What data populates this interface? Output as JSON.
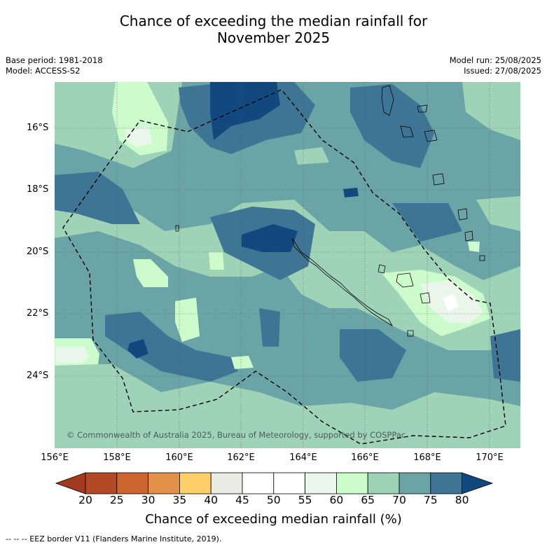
{
  "title_line1": "Chance of exceeding the median rainfall for",
  "title_line2": "November 2025",
  "base_period": "Base period: 1981-2018",
  "model": "Model: ACCESS-S2",
  "model_run": "Model run: 25/08/2025",
  "issued": "Issued: 27/08/2025",
  "latitude_labels": [
    "16°S",
    "18°S",
    "20°S",
    "22°S",
    "24°S"
  ],
  "longitude_labels": [
    "156°E",
    "158°E",
    "160°E",
    "162°E",
    "164°E",
    "166°E",
    "168°E",
    "170°E"
  ],
  "copyright": "© Commonwealth of Australia 2025, Bureau of Meteorology, supported by COSPPac",
  "colorbar": {
    "ticks": [
      "20",
      "25",
      "30",
      "35",
      "40",
      "45",
      "50",
      "55",
      "60",
      "65",
      "70",
      "75",
      "80"
    ],
    "colors": [
      "#a23a20",
      "#b34a25",
      "#cc6530",
      "#e39148",
      "#fece6a",
      "#ebebe6",
      "#ffffff",
      "#ffffff",
      "#eaf6ea",
      "#ccfccb",
      "#9ed3b7",
      "#6aa4a6",
      "#3e7595",
      "#11497f"
    ],
    "label": "Chance of exceeding median rainfall (%)"
  },
  "footnote": "--  --  -- EEZ border V11 (Flanders Marine Institute, 2019)."
}
